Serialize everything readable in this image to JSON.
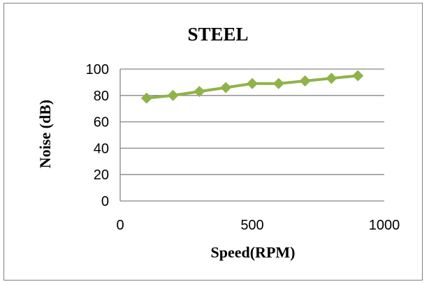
{
  "chart_data": {
    "type": "line",
    "title": "STEEL",
    "xlabel": "Speed(RPM)",
    "ylabel": "Noise (dB)",
    "xlim": [
      0,
      1000
    ],
    "ylim": [
      0,
      100
    ],
    "xticks": [
      0,
      500,
      1000
    ],
    "yticks": [
      0,
      20,
      40,
      60,
      80,
      100
    ],
    "grid": "horizontal",
    "legend": "none",
    "series": [
      {
        "color": "#8fb349",
        "marker": "diamond",
        "x": [
          100,
          200,
          300,
          400,
          500,
          600,
          700,
          800,
          900
        ],
        "y": [
          78,
          80,
          83,
          86,
          89,
          89,
          91,
          93,
          95
        ]
      }
    ]
  }
}
